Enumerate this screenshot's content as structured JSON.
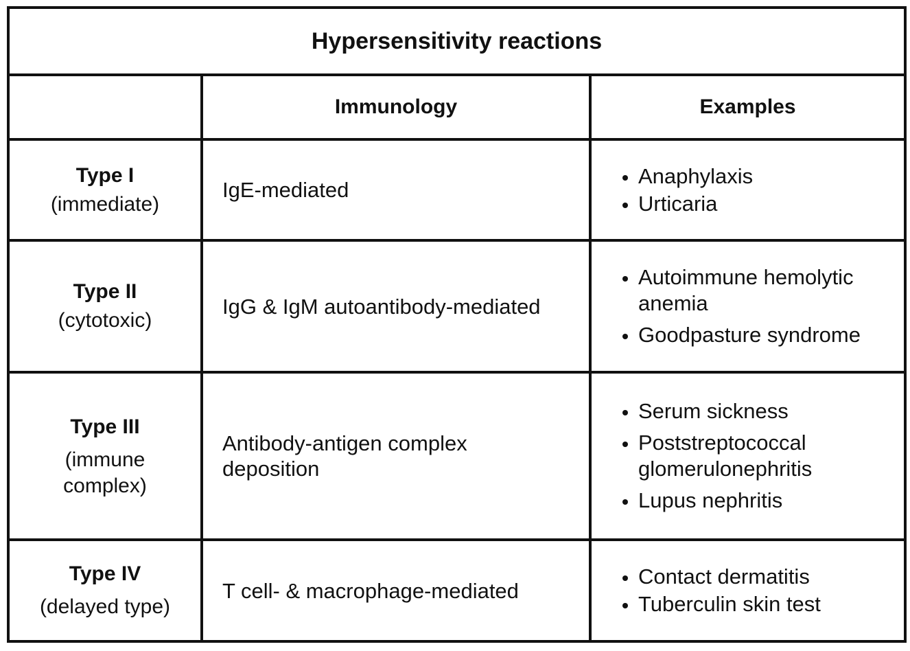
{
  "title": "Hypersensitivity reactions",
  "headers": {
    "blank": "",
    "immunology": "Immunology",
    "examples": "Examples"
  },
  "rows": [
    {
      "type": "Type I",
      "subtitle": "(immediate)",
      "immunology": "IgE-mediated",
      "examples": [
        "Anaphylaxis",
        "Urticaria"
      ]
    },
    {
      "type": "Type II",
      "subtitle": "(cytotoxic)",
      "immunology": "IgG & IgM autoantibody-mediated",
      "examples": [
        "Autoimmune hemolytic anemia",
        "Goodpasture syndrome"
      ]
    },
    {
      "type": "Type III",
      "subtitle": "(immune complex)",
      "immunology": "Antibody-antigen complex deposition",
      "examples": [
        "Serum sickness",
        "Poststreptococcal glomerulonephritis",
        "Lupus nephritis"
      ]
    },
    {
      "type": "Type IV",
      "subtitle": "(delayed type)",
      "immunology": "T cell- & macrophage-mediated",
      "examples": [
        "Contact dermatitis",
        "Tuberculin skin test"
      ]
    }
  ]
}
